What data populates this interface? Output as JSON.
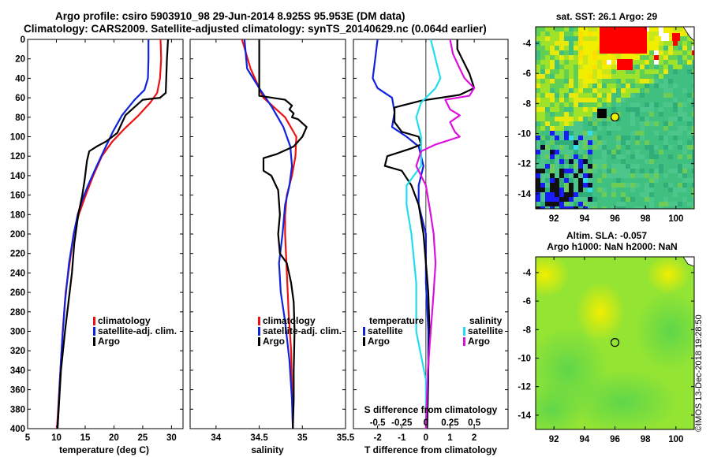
{
  "titles": {
    "line1": "Argo profile: csiro 5903910_98 29-Jun-2014 8.925S 95.953E (DM data)",
    "line2": "Climatology: CARS2009. Satellite-adjusted climatology: synTS_20140629.nc (0.064d earlier)"
  },
  "credit": "©IMOS 13-Dec-2018 19:28:50",
  "colors": {
    "argo": "#000000",
    "climatology": "#ee1111",
    "satellite_adj": "#1122dd",
    "salinity_diff": "#dd11dd",
    "salinity_sat": "#22ddee"
  },
  "chart_data": [
    {
      "id": "temperature",
      "type": "line",
      "xlabel": "temperature (deg C)",
      "ylabel": "",
      "xlim": [
        5,
        32
      ],
      "ylim": [
        400,
        0
      ],
      "xticks": [
        5,
        10,
        15,
        20,
        25,
        30
      ],
      "yticks": [
        0,
        20,
        40,
        60,
        80,
        100,
        120,
        140,
        160,
        180,
        200,
        220,
        240,
        260,
        280,
        300,
        320,
        340,
        360,
        380,
        400
      ],
      "legend": [
        "climatology",
        "satellite-adj. clim.",
        "Argo"
      ],
      "legend_position": "bottom-right",
      "series": [
        {
          "name": "climatology",
          "color": "#ee1111",
          "points": [
            [
              28.1,
              0
            ],
            [
              28.2,
              20
            ],
            [
              28.0,
              40
            ],
            [
              27.5,
              55
            ],
            [
              26.3,
              65
            ],
            [
              24.3,
              78
            ],
            [
              21.8,
              92
            ],
            [
              19.7,
              105
            ],
            [
              17.9,
              120
            ],
            [
              16.4,
              140
            ],
            [
              15.1,
              160
            ],
            [
              13.9,
              180
            ],
            [
              13.0,
              200
            ],
            [
              12.3,
              230
            ],
            [
              11.6,
              260
            ],
            [
              11.1,
              300
            ],
            [
              10.7,
              340
            ],
            [
              10.3,
              380
            ],
            [
              10.1,
              400
            ]
          ]
        },
        {
          "name": "satellite-adj. clim.",
          "color": "#1122dd",
          "points": [
            [
              26.0,
              0
            ],
            [
              26.0,
              20
            ],
            [
              25.9,
              40
            ],
            [
              25.3,
              52
            ],
            [
              23.6,
              62
            ],
            [
              21.4,
              78
            ],
            [
              19.8,
              95
            ],
            [
              18.6,
              110
            ],
            [
              17.0,
              130
            ],
            [
              15.5,
              150
            ],
            [
              14.5,
              165
            ],
            [
              13.7,
              180
            ],
            [
              13.0,
              200
            ],
            [
              12.2,
              230
            ],
            [
              11.5,
              270
            ],
            [
              11.0,
              310
            ],
            [
              10.6,
              350
            ],
            [
              10.2,
              400
            ]
          ]
        },
        {
          "name": "Argo",
          "color": "#000000",
          "points": [
            [
              29.4,
              0
            ],
            [
              29.2,
              20
            ],
            [
              29.0,
              55
            ],
            [
              28.0,
              60
            ],
            [
              25.0,
              62
            ],
            [
              22.0,
              78
            ],
            [
              20.6,
              96
            ],
            [
              18.6,
              105
            ],
            [
              17.0,
              110
            ],
            [
              15.7,
              115
            ],
            [
              15.3,
              125
            ],
            [
              14.9,
              145
            ],
            [
              14.5,
              160
            ],
            [
              13.8,
              180
            ],
            [
              13.1,
              210
            ],
            [
              12.7,
              240
            ],
            [
              12.1,
              270
            ],
            [
              11.5,
              300
            ],
            [
              10.8,
              340
            ],
            [
              10.4,
              380
            ],
            [
              10.2,
              400
            ]
          ]
        }
      ]
    },
    {
      "id": "salinity",
      "type": "line",
      "xlabel": "salinity",
      "ylabel": "",
      "xlim": [
        33.7,
        35.5
      ],
      "ylim": [
        400,
        0
      ],
      "xticks": [
        34,
        34.5,
        35,
        35.5
      ],
      "legend": [
        "climatology",
        "satellite-adj. clim.",
        "Argo"
      ],
      "legend_position": "bottom-right",
      "series": [
        {
          "name": "climatology",
          "color": "#ee1111",
          "points": [
            [
              34.3,
              0
            ],
            [
              34.4,
              30
            ],
            [
              34.55,
              60
            ],
            [
              34.8,
              80
            ],
            [
              34.93,
              100
            ],
            [
              34.92,
              120
            ],
            [
              34.88,
              140
            ],
            [
              34.82,
              160
            ],
            [
              34.8,
              180
            ],
            [
              34.8,
              200
            ],
            [
              34.82,
              240
            ],
            [
              34.84,
              280
            ],
            [
              34.87,
              320
            ],
            [
              34.88,
              360
            ],
            [
              34.89,
              400
            ]
          ]
        },
        {
          "name": "satellite-adj. clim.",
          "color": "#1122dd",
          "points": [
            [
              34.33,
              0
            ],
            [
              34.36,
              30
            ],
            [
              34.5,
              50
            ],
            [
              34.65,
              70
            ],
            [
              34.78,
              90
            ],
            [
              34.86,
              110
            ],
            [
              34.88,
              130
            ],
            [
              34.85,
              150
            ],
            [
              34.8,
              170
            ],
            [
              34.77,
              200
            ],
            [
              34.73,
              230
            ],
            [
              34.75,
              260
            ],
            [
              34.8,
              290
            ],
            [
              34.85,
              330
            ],
            [
              34.88,
              370
            ],
            [
              34.89,
              400
            ]
          ]
        },
        {
          "name": "Argo",
          "color": "#000000",
          "points": [
            [
              34.5,
              0
            ],
            [
              34.5,
              58
            ],
            [
              34.8,
              62
            ],
            [
              34.88,
              68
            ],
            [
              34.85,
              72
            ],
            [
              34.9,
              76
            ],
            [
              34.88,
              80
            ],
            [
              34.95,
              82
            ],
            [
              35.05,
              90
            ],
            [
              35.0,
              100
            ],
            [
              34.9,
              110
            ],
            [
              34.7,
              118
            ],
            [
              34.55,
              122
            ],
            [
              34.55,
              135
            ],
            [
              34.64,
              140
            ],
            [
              34.72,
              155
            ],
            [
              34.74,
              180
            ],
            [
              34.72,
              200
            ],
            [
              34.74,
              220
            ],
            [
              34.82,
              230
            ],
            [
              34.87,
              250
            ],
            [
              34.9,
              270
            ],
            [
              34.91,
              300
            ],
            [
              34.9,
              340
            ],
            [
              34.9,
              370
            ],
            [
              34.89,
              400
            ]
          ]
        }
      ]
    },
    {
      "id": "difference",
      "type": "line",
      "xlabel": "T difference from climatology",
      "secondary_xlabel": "S difference from climatology",
      "xlim": [
        -3,
        3.4
      ],
      "ylim": [
        400,
        0
      ],
      "xticks": [
        -2,
        -1,
        0,
        1,
        2
      ],
      "secondary_xticks": [
        -0.5,
        -0.25,
        0,
        0.25,
        0.5
      ],
      "legend_left_title": "temperature",
      "legend_right_title": "salinity",
      "legend": [
        "satellite",
        "Argo",
        "satellite",
        "Argo"
      ],
      "legend_position": "bottom",
      "series": [
        {
          "name": "temperature satellite",
          "color": "#1122dd",
          "points": [
            [
              -2.0,
              0
            ],
            [
              -2.1,
              20
            ],
            [
              -2.2,
              40
            ],
            [
              -2.0,
              50
            ],
            [
              -1.4,
              60
            ],
            [
              -1.3,
              75
            ],
            [
              -1.4,
              90
            ],
            [
              -0.8,
              100
            ],
            [
              -0.3,
              110
            ],
            [
              -0.1,
              130
            ],
            [
              -0.3,
              150
            ],
            [
              -0.3,
              170
            ],
            [
              0.0,
              200
            ],
            [
              0.0,
              250
            ],
            [
              0.1,
              300
            ],
            [
              0.1,
              350
            ],
            [
              0.05,
              400
            ]
          ]
        },
        {
          "name": "temperature Argo",
          "color": "#000000",
          "points": [
            [
              1.3,
              0
            ],
            [
              1.3,
              10
            ],
            [
              1.5,
              20
            ],
            [
              1.8,
              35
            ],
            [
              2.0,
              50
            ],
            [
              1.4,
              57
            ],
            [
              -0.2,
              63
            ],
            [
              -1.3,
              70
            ],
            [
              -1.3,
              85
            ],
            [
              -1.0,
              95
            ],
            [
              -0.3,
              100
            ],
            [
              -0.2,
              108
            ],
            [
              -0.6,
              112
            ],
            [
              -1.6,
              120
            ],
            [
              -1.7,
              130
            ],
            [
              -1.0,
              135
            ],
            [
              -0.6,
              150
            ],
            [
              -0.3,
              170
            ],
            [
              -0.1,
              200
            ],
            [
              0.0,
              230
            ],
            [
              0.1,
              260
            ],
            [
              0.15,
              300
            ],
            [
              0.1,
              340
            ],
            [
              0.05,
              400
            ]
          ]
        },
        {
          "name": "salinity satellite",
          "color": "#22ddee",
          "points": [
            [
              0.05,
              0
            ],
            [
              0.1,
              20
            ],
            [
              0.15,
              40
            ],
            [
              0.1,
              50
            ],
            [
              -0.05,
              65
            ],
            [
              -0.1,
              80
            ],
            [
              -0.05,
              100
            ],
            [
              -0.05,
              130
            ],
            [
              -0.2,
              150
            ],
            [
              -0.2,
              170
            ],
            [
              -0.15,
              200
            ],
            [
              -0.1,
              250
            ],
            [
              -0.1,
              300
            ],
            [
              0.0,
              350
            ],
            [
              0.0,
              400
            ]
          ]
        },
        {
          "name": "salinity Argo",
          "color": "#dd11dd",
          "points": [
            [
              0.25,
              0
            ],
            [
              0.28,
              15
            ],
            [
              0.35,
              30
            ],
            [
              0.4,
              40
            ],
            [
              0.5,
              50
            ],
            [
              0.45,
              58
            ],
            [
              0.2,
              62
            ],
            [
              0.25,
              72
            ],
            [
              0.35,
              78
            ],
            [
              0.25,
              85
            ],
            [
              0.3,
              95
            ],
            [
              0.35,
              100
            ],
            [
              0.1,
              108
            ],
            [
              -0.05,
              115
            ],
            [
              -0.1,
              130
            ],
            [
              0.0,
              150
            ],
            [
              0.05,
              180
            ],
            [
              0.08,
              200
            ],
            [
              0.1,
              230
            ],
            [
              0.08,
              260
            ],
            [
              0.05,
              300
            ],
            [
              0.02,
              340
            ],
            [
              0.0,
              400
            ]
          ]
        }
      ]
    }
  ],
  "maps": {
    "sst": {
      "title": "sat. SST: 26.1 Argo: 29",
      "xticks": [
        92,
        94,
        96,
        98,
        100
      ],
      "yticks": [
        -4,
        -6,
        -8,
        -10,
        -12,
        -14
      ],
      "xlim": [
        90.8,
        101.2
      ],
      "ylim": [
        -15,
        -2.9
      ],
      "marker": {
        "lon": 96.0,
        "lat": -8.9
      }
    },
    "sla": {
      "title": "Altim. SLA: -0.057",
      "subtitle": "Argo h1000: NaN h2000: NaN",
      "xticks": [
        92,
        94,
        96,
        98,
        100
      ],
      "yticks": [
        -4,
        -6,
        -8,
        -10,
        -12,
        -14
      ],
      "xlim": [
        90.8,
        101.2
      ],
      "ylim": [
        -15,
        -2.9
      ],
      "marker": {
        "lon": 96.0,
        "lat": -8.9
      }
    }
  }
}
